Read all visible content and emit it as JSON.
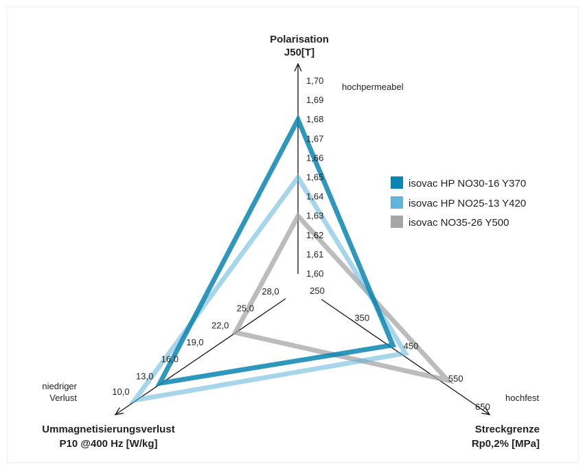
{
  "chart_data": {
    "type": "radar",
    "axes": [
      {
        "id": "polarisation",
        "title_lines": [
          "Polarisation",
          "J50[T]"
        ],
        "ticks": [
          "1,60",
          "1,61",
          "1,62",
          "1,63",
          "1,64",
          "1,65",
          "1,66",
          "1,67",
          "1,68",
          "1,69",
          "1,70"
        ],
        "tick_values": [
          1.6,
          1.61,
          1.62,
          1.63,
          1.64,
          1.65,
          1.66,
          1.67,
          1.68,
          1.69,
          1.7
        ],
        "range": [
          1.6,
          1.7
        ],
        "annotation": [
          "hochpermeabel"
        ]
      },
      {
        "id": "streckgrenze",
        "title_lines": [
          "Streckgrenze",
          "Rp0,2% [MPa]"
        ],
        "ticks": [
          "250",
          "350",
          "450",
          "550",
          "650"
        ],
        "tick_values": [
          250,
          350,
          450,
          550,
          650
        ],
        "range": [
          250,
          650
        ],
        "annotation": [
          "hochfest"
        ]
      },
      {
        "id": "verlust",
        "title_lines": [
          "Ummagnetisierungsverlust",
          "P10 @400 Hz [W/kg]"
        ],
        "ticks": [
          "28,0",
          "25,0",
          "22,0",
          "19,0",
          "16,0",
          "13,0",
          "10,0"
        ],
        "tick_values": [
          28.0,
          25.0,
          22.0,
          19.0,
          16.0,
          13.0,
          10.0
        ],
        "range": [
          28.0,
          10.0
        ],
        "annotation": [
          "niedriger",
          "Verlust"
        ]
      }
    ],
    "series": [
      {
        "name": "isovac HP NO30-16 Y370",
        "color": "#0a84b0",
        "values": [
          1.68,
          420,
          13.0
        ]
      },
      {
        "name": "isovac HP NO25-13 Y420",
        "color": "#5fb5d9",
        "values": [
          1.65,
          450,
          10.0
        ]
      },
      {
        "name": "isovac NO35-26 Y500",
        "color": "#a6a6a6",
        "values": [
          1.63,
          550,
          22.0
        ]
      }
    ],
    "legend_position": "right"
  }
}
